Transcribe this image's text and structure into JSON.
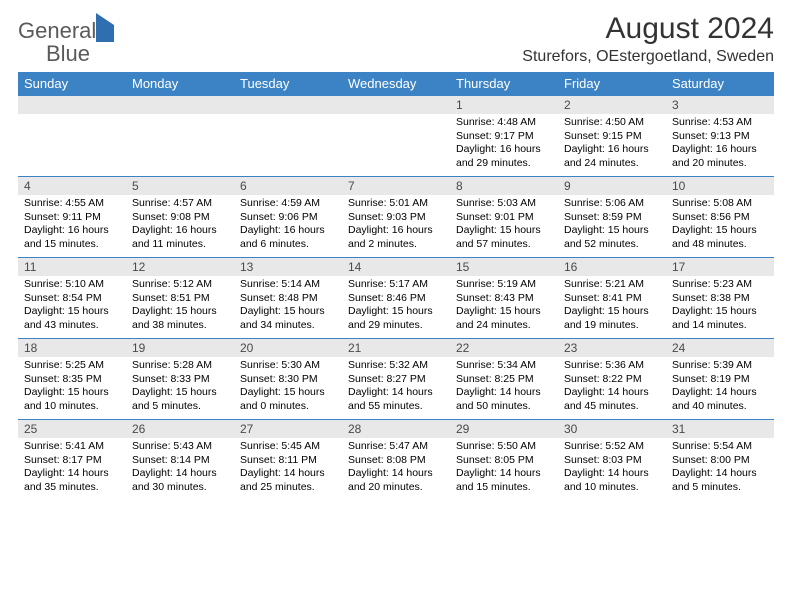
{
  "brand": {
    "part1": "General",
    "part2": "Blue"
  },
  "title": "August 2024",
  "location": "Sturefors, OEstergoetland, Sweden",
  "colors": {
    "header_bg": "#3b83c5",
    "header_text": "#ffffff",
    "daynum_bg": "#e8e8e8",
    "border": "#3b83c5",
    "logo_gray": "#5a5a5a",
    "logo_blue": "#2f6fb0"
  },
  "weekday_labels": [
    "Sunday",
    "Monday",
    "Tuesday",
    "Wednesday",
    "Thursday",
    "Friday",
    "Saturday"
  ],
  "weeks": [
    [
      {
        "day": "",
        "lines": []
      },
      {
        "day": "",
        "lines": []
      },
      {
        "day": "",
        "lines": []
      },
      {
        "day": "",
        "lines": []
      },
      {
        "day": "1",
        "lines": [
          "Sunrise: 4:48 AM",
          "Sunset: 9:17 PM",
          "Daylight: 16 hours",
          "and 29 minutes."
        ]
      },
      {
        "day": "2",
        "lines": [
          "Sunrise: 4:50 AM",
          "Sunset: 9:15 PM",
          "Daylight: 16 hours",
          "and 24 minutes."
        ]
      },
      {
        "day": "3",
        "lines": [
          "Sunrise: 4:53 AM",
          "Sunset: 9:13 PM",
          "Daylight: 16 hours",
          "and 20 minutes."
        ]
      }
    ],
    [
      {
        "day": "4",
        "lines": [
          "Sunrise: 4:55 AM",
          "Sunset: 9:11 PM",
          "Daylight: 16 hours",
          "and 15 minutes."
        ]
      },
      {
        "day": "5",
        "lines": [
          "Sunrise: 4:57 AM",
          "Sunset: 9:08 PM",
          "Daylight: 16 hours",
          "and 11 minutes."
        ]
      },
      {
        "day": "6",
        "lines": [
          "Sunrise: 4:59 AM",
          "Sunset: 9:06 PM",
          "Daylight: 16 hours",
          "and 6 minutes."
        ]
      },
      {
        "day": "7",
        "lines": [
          "Sunrise: 5:01 AM",
          "Sunset: 9:03 PM",
          "Daylight: 16 hours",
          "and 2 minutes."
        ]
      },
      {
        "day": "8",
        "lines": [
          "Sunrise: 5:03 AM",
          "Sunset: 9:01 PM",
          "Daylight: 15 hours",
          "and 57 minutes."
        ]
      },
      {
        "day": "9",
        "lines": [
          "Sunrise: 5:06 AM",
          "Sunset: 8:59 PM",
          "Daylight: 15 hours",
          "and 52 minutes."
        ]
      },
      {
        "day": "10",
        "lines": [
          "Sunrise: 5:08 AM",
          "Sunset: 8:56 PM",
          "Daylight: 15 hours",
          "and 48 minutes."
        ]
      }
    ],
    [
      {
        "day": "11",
        "lines": [
          "Sunrise: 5:10 AM",
          "Sunset: 8:54 PM",
          "Daylight: 15 hours",
          "and 43 minutes."
        ]
      },
      {
        "day": "12",
        "lines": [
          "Sunrise: 5:12 AM",
          "Sunset: 8:51 PM",
          "Daylight: 15 hours",
          "and 38 minutes."
        ]
      },
      {
        "day": "13",
        "lines": [
          "Sunrise: 5:14 AM",
          "Sunset: 8:48 PM",
          "Daylight: 15 hours",
          "and 34 minutes."
        ]
      },
      {
        "day": "14",
        "lines": [
          "Sunrise: 5:17 AM",
          "Sunset: 8:46 PM",
          "Daylight: 15 hours",
          "and 29 minutes."
        ]
      },
      {
        "day": "15",
        "lines": [
          "Sunrise: 5:19 AM",
          "Sunset: 8:43 PM",
          "Daylight: 15 hours",
          "and 24 minutes."
        ]
      },
      {
        "day": "16",
        "lines": [
          "Sunrise: 5:21 AM",
          "Sunset: 8:41 PM",
          "Daylight: 15 hours",
          "and 19 minutes."
        ]
      },
      {
        "day": "17",
        "lines": [
          "Sunrise: 5:23 AM",
          "Sunset: 8:38 PM",
          "Daylight: 15 hours",
          "and 14 minutes."
        ]
      }
    ],
    [
      {
        "day": "18",
        "lines": [
          "Sunrise: 5:25 AM",
          "Sunset: 8:35 PM",
          "Daylight: 15 hours",
          "and 10 minutes."
        ]
      },
      {
        "day": "19",
        "lines": [
          "Sunrise: 5:28 AM",
          "Sunset: 8:33 PM",
          "Daylight: 15 hours",
          "and 5 minutes."
        ]
      },
      {
        "day": "20",
        "lines": [
          "Sunrise: 5:30 AM",
          "Sunset: 8:30 PM",
          "Daylight: 15 hours",
          "and 0 minutes."
        ]
      },
      {
        "day": "21",
        "lines": [
          "Sunrise: 5:32 AM",
          "Sunset: 8:27 PM",
          "Daylight: 14 hours",
          "and 55 minutes."
        ]
      },
      {
        "day": "22",
        "lines": [
          "Sunrise: 5:34 AM",
          "Sunset: 8:25 PM",
          "Daylight: 14 hours",
          "and 50 minutes."
        ]
      },
      {
        "day": "23",
        "lines": [
          "Sunrise: 5:36 AM",
          "Sunset: 8:22 PM",
          "Daylight: 14 hours",
          "and 45 minutes."
        ]
      },
      {
        "day": "24",
        "lines": [
          "Sunrise: 5:39 AM",
          "Sunset: 8:19 PM",
          "Daylight: 14 hours",
          "and 40 minutes."
        ]
      }
    ],
    [
      {
        "day": "25",
        "lines": [
          "Sunrise: 5:41 AM",
          "Sunset: 8:17 PM",
          "Daylight: 14 hours",
          "and 35 minutes."
        ]
      },
      {
        "day": "26",
        "lines": [
          "Sunrise: 5:43 AM",
          "Sunset: 8:14 PM",
          "Daylight: 14 hours",
          "and 30 minutes."
        ]
      },
      {
        "day": "27",
        "lines": [
          "Sunrise: 5:45 AM",
          "Sunset: 8:11 PM",
          "Daylight: 14 hours",
          "and 25 minutes."
        ]
      },
      {
        "day": "28",
        "lines": [
          "Sunrise: 5:47 AM",
          "Sunset: 8:08 PM",
          "Daylight: 14 hours",
          "and 20 minutes."
        ]
      },
      {
        "day": "29",
        "lines": [
          "Sunrise: 5:50 AM",
          "Sunset: 8:05 PM",
          "Daylight: 14 hours",
          "and 15 minutes."
        ]
      },
      {
        "day": "30",
        "lines": [
          "Sunrise: 5:52 AM",
          "Sunset: 8:03 PM",
          "Daylight: 14 hours",
          "and 10 minutes."
        ]
      },
      {
        "day": "31",
        "lines": [
          "Sunrise: 5:54 AM",
          "Sunset: 8:00 PM",
          "Daylight: 14 hours",
          "and 5 minutes."
        ]
      }
    ]
  ]
}
